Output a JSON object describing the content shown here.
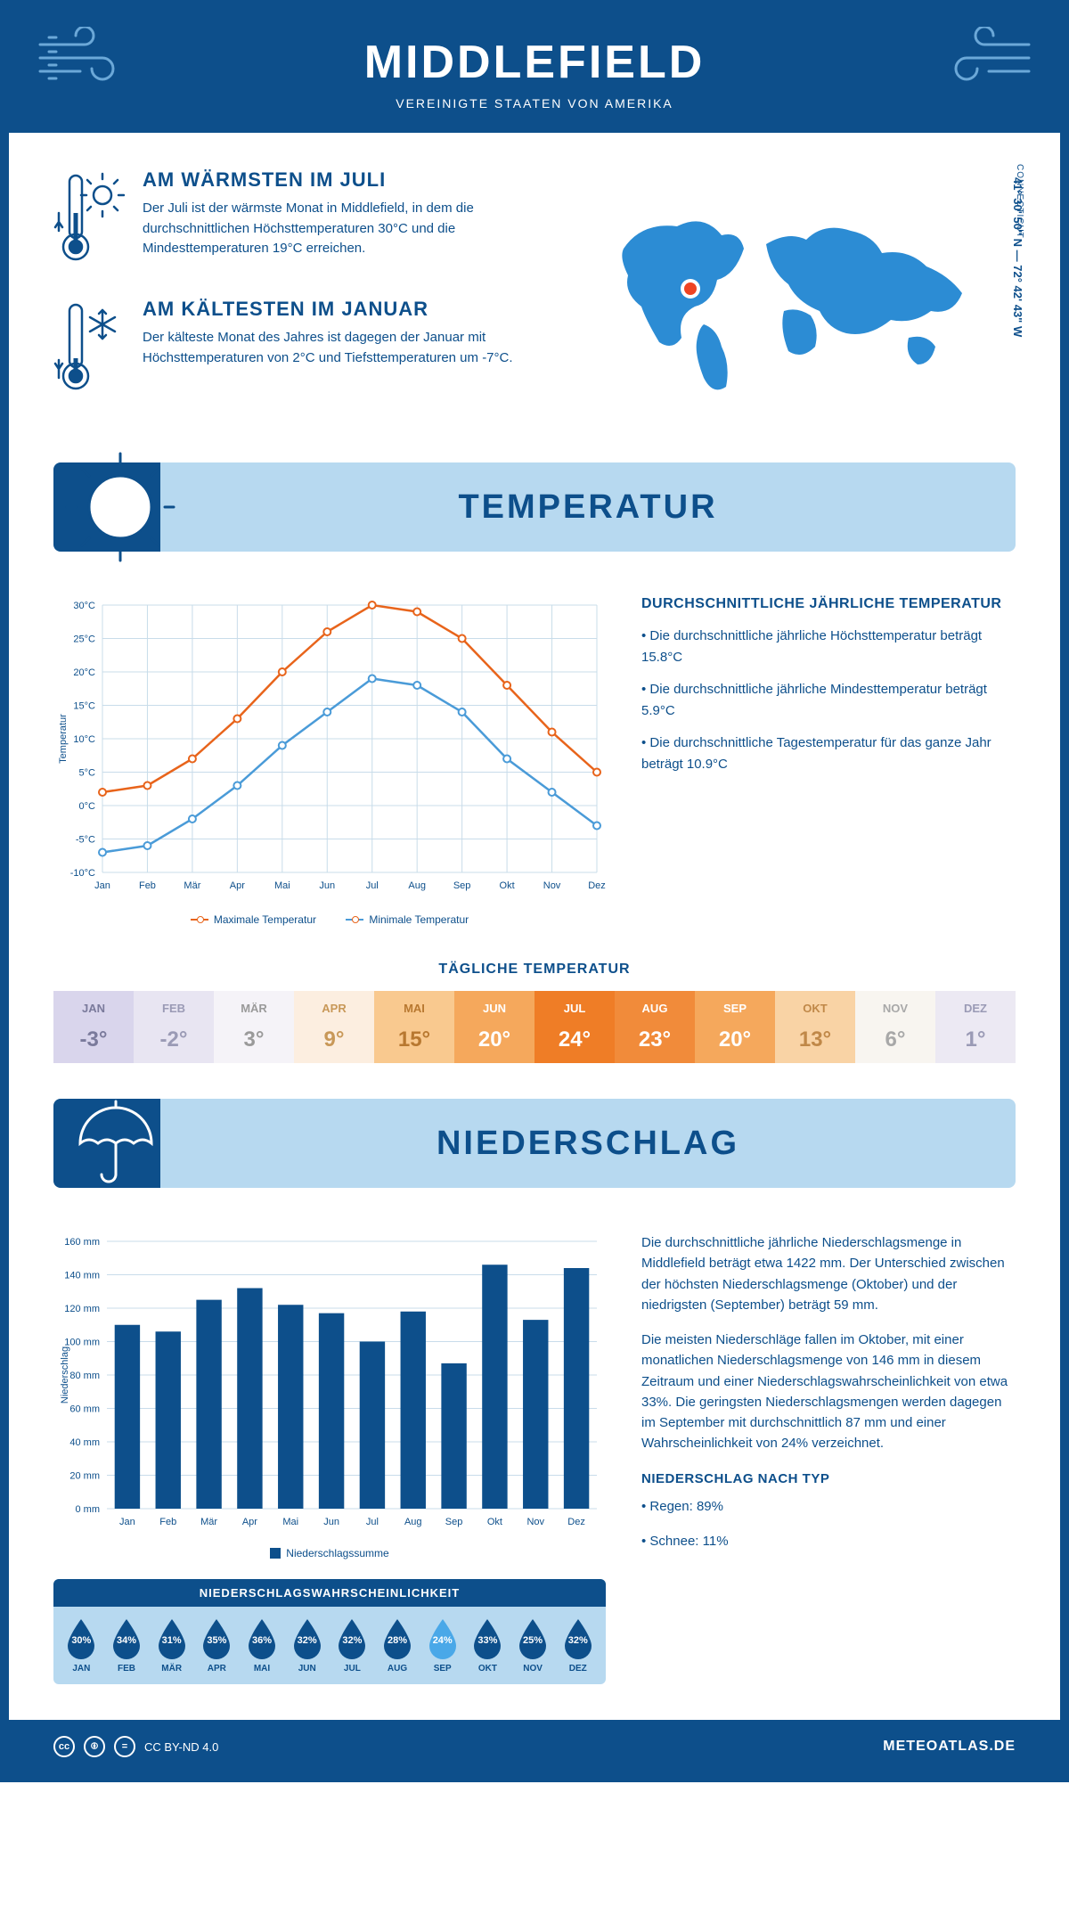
{
  "header": {
    "title": "MIDDLEFIELD",
    "subtitle": "VEREINIGTE STAATEN VON AMERIKA"
  },
  "coords": "41° 30' 50\" N — 72° 42' 43\" W",
  "region": "CONNECTICUT",
  "warmest": {
    "title": "AM WÄRMSTEN IM JULI",
    "text": "Der Juli ist der wärmste Monat in Middlefield, in dem die durchschnittlichen Höchsttemperaturen 30°C und die Mindesttemperaturen 19°C erreichen."
  },
  "coldest": {
    "title": "AM KÄLTESTEN IM JANUAR",
    "text": "Der kälteste Monat des Jahres ist dagegen der Januar mit Höchsttemperaturen von 2°C und Tiefsttemperaturen um -7°C."
  },
  "temp_section": {
    "title": "TEMPERATUR"
  },
  "temp_chart": {
    "type": "line",
    "ylim": [
      -10,
      30
    ],
    "ytick_step": 5,
    "months": [
      "Jan",
      "Feb",
      "Mär",
      "Apr",
      "Mai",
      "Jun",
      "Jul",
      "Aug",
      "Sep",
      "Okt",
      "Nov",
      "Dez"
    ],
    "max_series": {
      "label": "Maximale Temperatur",
      "color": "#e8641b",
      "values": [
        2,
        3,
        7,
        13,
        20,
        26,
        30,
        29,
        25,
        18,
        11,
        5
      ]
    },
    "min_series": {
      "label": "Minimale Temperatur",
      "color": "#4a9bd8",
      "values": [
        -7,
        -6,
        -2,
        3,
        9,
        14,
        19,
        18,
        14,
        7,
        2,
        -3
      ]
    },
    "y_axis_label": "Temperatur",
    "grid_color": "#c8dcea",
    "background": "#ffffff"
  },
  "temp_text": {
    "heading": "DURCHSCHNITTLICHE JÄHRLICHE TEMPERATUR",
    "b1": "• Die durchschnittliche jährliche Höchsttemperatur beträgt 15.8°C",
    "b2": "• Die durchschnittliche jährliche Mindesttemperatur beträgt 5.9°C",
    "b3": "• Die durchschnittliche Tagestemperatur für das ganze Jahr beträgt 10.9°C"
  },
  "daily": {
    "heading": "TÄGLICHE TEMPERATUR",
    "cells": [
      {
        "m": "JAN",
        "v": "-3°",
        "bg": "#d9d5ec",
        "fg": "#7a7a9b"
      },
      {
        "m": "FEB",
        "v": "-2°",
        "bg": "#e8e5f2",
        "fg": "#9a9ab5"
      },
      {
        "m": "MÄR",
        "v": "3°",
        "bg": "#f5f3f8",
        "fg": "#9a9a9a"
      },
      {
        "m": "APR",
        "v": "9°",
        "bg": "#fceee0",
        "fg": "#c89858"
      },
      {
        "m": "MAI",
        "v": "15°",
        "bg": "#f9c98f",
        "fg": "#b87830"
      },
      {
        "m": "JUN",
        "v": "20°",
        "bg": "#f5a85c",
        "fg": "#ffffff"
      },
      {
        "m": "JUL",
        "v": "24°",
        "bg": "#ef7d26",
        "fg": "#ffffff"
      },
      {
        "m": "AUG",
        "v": "23°",
        "bg": "#f18b3a",
        "fg": "#ffffff"
      },
      {
        "m": "SEP",
        "v": "20°",
        "bg": "#f5a85c",
        "fg": "#ffffff"
      },
      {
        "m": "OKT",
        "v": "13°",
        "bg": "#f9d3a5",
        "fg": "#c08848"
      },
      {
        "m": "NOV",
        "v": "6°",
        "bg": "#f8f5f0",
        "fg": "#a8a8a8"
      },
      {
        "m": "DEZ",
        "v": "1°",
        "bg": "#ece9f3",
        "fg": "#9a9ab5"
      }
    ]
  },
  "precip_section": {
    "title": "NIEDERSCHLAG"
  },
  "precip_chart": {
    "type": "bar",
    "ylim": [
      0,
      160
    ],
    "ytick_step": 20,
    "months": [
      "Jan",
      "Feb",
      "Mär",
      "Apr",
      "Mai",
      "Jun",
      "Jul",
      "Aug",
      "Sep",
      "Okt",
      "Nov",
      "Dez"
    ],
    "values": [
      110,
      106,
      125,
      132,
      122,
      117,
      100,
      118,
      87,
      146,
      113,
      144
    ],
    "bar_color": "#0d4f8b",
    "grid_color": "#c8dcea",
    "legend": "Niederschlagssumme",
    "y_axis_label": "Niederschlag"
  },
  "precip_text": {
    "p1": "Die durchschnittliche jährliche Niederschlagsmenge in Middlefield beträgt etwa 1422 mm. Der Unterschied zwischen der höchsten Niederschlagsmenge (Oktober) und der niedrigsten (September) beträgt 59 mm.",
    "p2": "Die meisten Niederschläge fallen im Oktober, mit einer monatlichen Niederschlagsmenge von 146 mm in diesem Zeitraum und einer Niederschlagswahrscheinlichkeit von etwa 33%. Die geringsten Niederschlagsmengen werden dagegen im September mit durchschnittlich 87 mm und einer Wahrscheinlichkeit von 24% verzeichnet.",
    "type_heading": "NIEDERSCHLAG NACH TYP",
    "type1": "• Regen: 89%",
    "type2": "• Schnee: 11%"
  },
  "prob": {
    "title": "NIEDERSCHLAGSWAHRSCHEINLICHKEIT",
    "cells": [
      {
        "m": "JAN",
        "v": "30%",
        "c": "#0d4f8b"
      },
      {
        "m": "FEB",
        "v": "34%",
        "c": "#0d4f8b"
      },
      {
        "m": "MÄR",
        "v": "31%",
        "c": "#0d4f8b"
      },
      {
        "m": "APR",
        "v": "35%",
        "c": "#0d4f8b"
      },
      {
        "m": "MAI",
        "v": "36%",
        "c": "#0d4f8b"
      },
      {
        "m": "JUN",
        "v": "32%",
        "c": "#0d4f8b"
      },
      {
        "m": "JUL",
        "v": "32%",
        "c": "#0d4f8b"
      },
      {
        "m": "AUG",
        "v": "28%",
        "c": "#0d4f8b"
      },
      {
        "m": "SEP",
        "v": "24%",
        "c": "#4aa8e8"
      },
      {
        "m": "OKT",
        "v": "33%",
        "c": "#0d4f8b"
      },
      {
        "m": "NOV",
        "v": "25%",
        "c": "#0d4f8b"
      },
      {
        "m": "DEZ",
        "v": "32%",
        "c": "#0d4f8b"
      }
    ]
  },
  "footer": {
    "license": "CC BY-ND 4.0",
    "site": "METEOATLAS.DE"
  }
}
